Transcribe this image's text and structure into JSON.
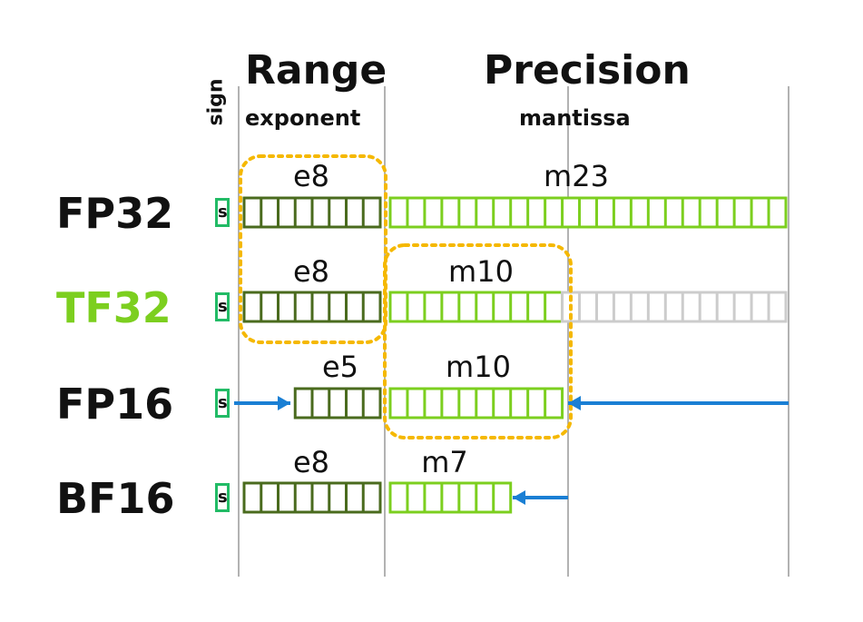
{
  "headers": {
    "sign": "sign",
    "range": "Range",
    "exponent": "exponent",
    "precision": "Precision",
    "mantissa": "mantissa"
  },
  "colors": {
    "exponent": "#4a6b1e",
    "mantissa": "#7ccf1f",
    "unused": "#cccccc",
    "sign": "#22bb66",
    "highlight": "#f5b800",
    "arrow": "#1a7fd4",
    "tf32_label": "#7ccf1f"
  },
  "sign_bit": "s",
  "formats": [
    {
      "name": "FP32",
      "name_color": "#111111",
      "exp_label": "e8",
      "exp_bits": 8,
      "man_label": "m23",
      "man_bits": 23,
      "unused_bits": 0
    },
    {
      "name": "TF32",
      "name_color": "#7ccf1f",
      "exp_label": "e8",
      "exp_bits": 8,
      "man_label": "m10",
      "man_bits": 10,
      "unused_bits": 13
    },
    {
      "name": "FP16",
      "name_color": "#111111",
      "exp_label": "e5",
      "exp_bits": 5,
      "man_label": "m10",
      "man_bits": 10,
      "unused_bits": 0
    },
    {
      "name": "BF16",
      "name_color": "#111111",
      "exp_label": "e8",
      "exp_bits": 8,
      "man_label": "m7",
      "man_bits": 7,
      "unused_bits": 0
    }
  ]
}
